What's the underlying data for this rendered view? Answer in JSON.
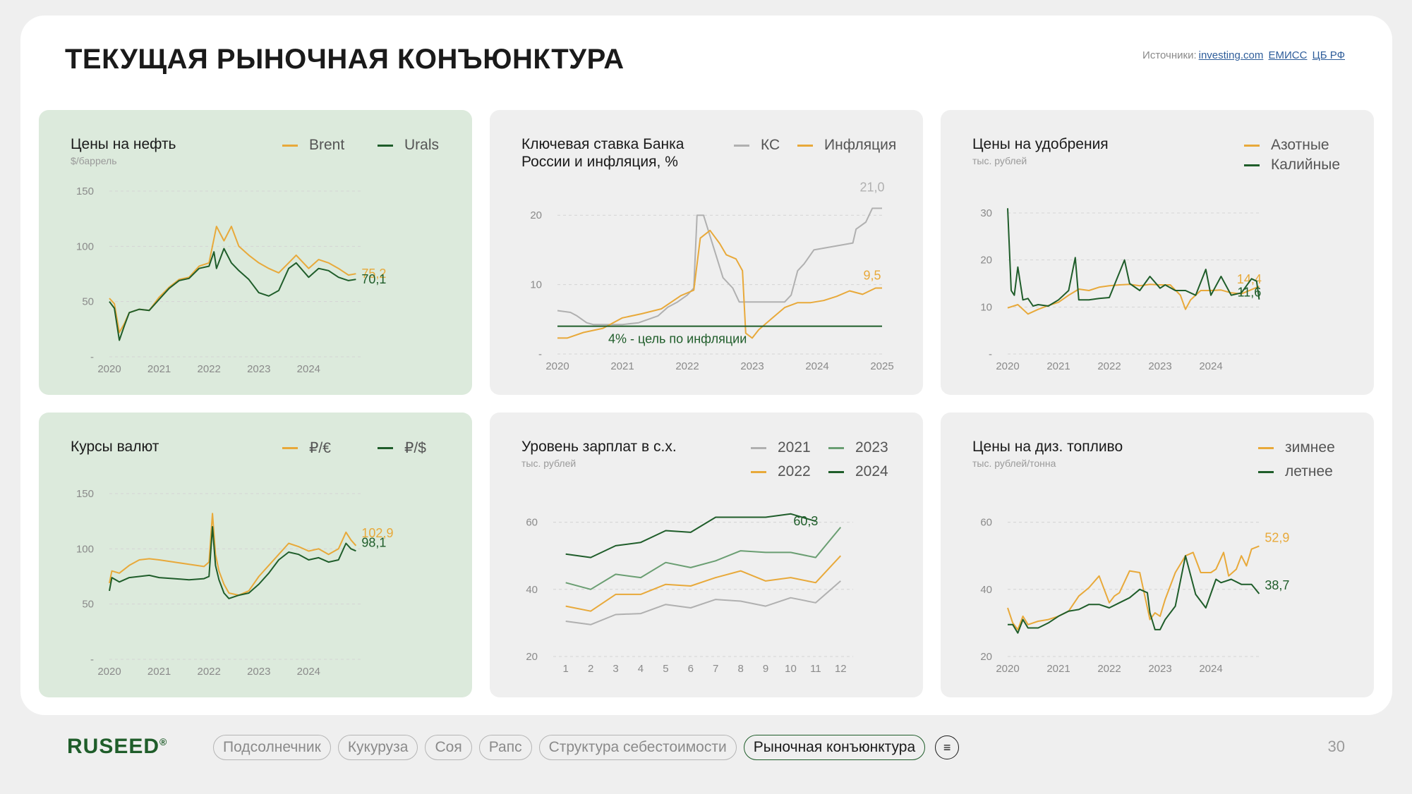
{
  "header": {
    "title": "ТЕКУЩАЯ РЫНОЧНАЯ КОНЪЮНКТУРА",
    "sources_label": "Источники:",
    "sources": [
      "investing.com",
      "ЕМИСС",
      "ЦБ РФ"
    ]
  },
  "colors": {
    "orange": "#e8a93a",
    "dark_green": "#1f5d2a",
    "mid_green": "#6a9e72",
    "gray": "#b0b0b0",
    "card_green": "#dceadc",
    "card_gray": "#efefef"
  },
  "chart_data": [
    {
      "id": "oil",
      "type": "line",
      "title": "Цены на нефть",
      "subtitle": "$/баррель",
      "ylim": [
        0,
        150
      ],
      "y_ticks": [
        0,
        50,
        100,
        150
      ],
      "y_tick_labels": [
        "-",
        "50",
        "100",
        "150"
      ],
      "xlim": [
        2020,
        2025.1
      ],
      "x_ticks": [
        2020,
        2021,
        2022,
        2023,
        2024
      ],
      "x_tick_labels": [
        "2020",
        "2021",
        "2022",
        "2023",
        "2024"
      ],
      "legend": "top-right",
      "series": [
        {
          "name": "Brent",
          "color": "#e8a93a",
          "x": [
            2020.0,
            2020.1,
            2020.2,
            2020.3,
            2020.4,
            2020.6,
            2020.8,
            2021.0,
            2021.2,
            2021.4,
            2021.6,
            2021.8,
            2022.0,
            2022.15,
            2022.3,
            2022.45,
            2022.6,
            2022.8,
            2023.0,
            2023.2,
            2023.4,
            2023.6,
            2023.75,
            2024.0,
            2024.2,
            2024.4,
            2024.6,
            2024.8,
            2024.95
          ],
          "y": [
            53,
            48,
            22,
            30,
            40,
            43,
            42,
            54,
            63,
            70,
            72,
            82,
            85,
            118,
            105,
            118,
            100,
            92,
            85,
            80,
            76,
            85,
            92,
            80,
            88,
            85,
            80,
            74,
            75.2
          ],
          "end_label": "75,2"
        },
        {
          "name": "Urals",
          "color": "#1f5d2a",
          "x": [
            2020.0,
            2020.1,
            2020.2,
            2020.3,
            2020.4,
            2020.6,
            2020.8,
            2021.0,
            2021.2,
            2021.4,
            2021.6,
            2021.8,
            2022.0,
            2022.1,
            2022.15,
            2022.3,
            2022.45,
            2022.6,
            2022.8,
            2023.0,
            2023.2,
            2023.4,
            2023.6,
            2023.75,
            2024.0,
            2024.2,
            2024.4,
            2024.6,
            2024.8,
            2024.95
          ],
          "y": [
            50,
            44,
            15,
            28,
            40,
            43,
            42,
            52,
            62,
            69,
            71,
            80,
            82,
            95,
            80,
            98,
            85,
            78,
            70,
            58,
            55,
            60,
            80,
            85,
            72,
            80,
            78,
            72,
            69,
            70.1
          ],
          "end_label": "70,1"
        }
      ]
    },
    {
      "id": "key-rate",
      "type": "line",
      "title": "Ключевая ставка Банка России и инфляция, %",
      "ylim": [
        0,
        25
      ],
      "y_ticks": [
        0,
        10,
        20
      ],
      "y_tick_labels": [
        "-",
        "10",
        "20"
      ],
      "xlim": [
        2020,
        2025
      ],
      "x_ticks": [
        2020,
        2021,
        2022,
        2023,
        2024,
        2025
      ],
      "x_tick_labels": [
        "2020",
        "2021",
        "2022",
        "2023",
        "2024",
        "2025"
      ],
      "legend": "top-right",
      "annotation": "4% - цель по инфляции",
      "series": [
        {
          "name": "КС",
          "color": "#b0b0b0",
          "x": [
            2020.0,
            2020.2,
            2020.3,
            2020.45,
            2020.55,
            2021.0,
            2021.25,
            2021.4,
            2021.55,
            2021.7,
            2021.85,
            2022.0,
            2022.1,
            2022.15,
            2022.25,
            2022.35,
            2022.45,
            2022.55,
            2022.7,
            2022.8,
            2023.5,
            2023.6,
            2023.7,
            2023.8,
            2023.95,
            2024.55,
            2024.6,
            2024.75,
            2024.85,
            2025.0
          ],
          "y": [
            6.25,
            6,
            5.5,
            4.5,
            4.25,
            4.25,
            4.5,
            5,
            5.5,
            6.75,
            7.5,
            8.5,
            9.5,
            20,
            20,
            17,
            14,
            11,
            9.5,
            7.5,
            7.5,
            8.5,
            12,
            13,
            15,
            16,
            18,
            19,
            21,
            21
          ],
          "end_label": "21,0"
        },
        {
          "name": "Инфляция",
          "color": "#e8a93a",
          "x": [
            2020.0,
            2020.15,
            2020.4,
            2020.7,
            2021.0,
            2021.3,
            2021.6,
            2021.9,
            2022.1,
            2022.2,
            2022.35,
            2022.5,
            2022.6,
            2022.75,
            2022.85,
            2022.9,
            2023.0,
            2023.1,
            2023.3,
            2023.5,
            2023.7,
            2023.9,
            2024.1,
            2024.3,
            2024.5,
            2024.7,
            2024.9,
            2025.0
          ],
          "y": [
            2.3,
            2.3,
            3.1,
            3.7,
            5.2,
            5.8,
            6.5,
            8.4,
            9.2,
            16.7,
            17.8,
            15.9,
            14.3,
            13.7,
            12,
            3,
            2.3,
            3.5,
            5.1,
            6.7,
            7.4,
            7.4,
            7.7,
            8.3,
            9.1,
            8.6,
            9.5,
            9.5
          ],
          "end_label": "9,5"
        },
        {
          "name": "Цель",
          "color": "#1f5d2a",
          "x": [
            2020.0,
            2025.0
          ],
          "y": [
            4,
            4
          ]
        }
      ]
    },
    {
      "id": "fertilizer",
      "type": "line",
      "title": "Цены на удобрения",
      "subtitle": "тыс. рублей",
      "ylim": [
        0,
        30
      ],
      "y_ticks": [
        0,
        10,
        20,
        30
      ],
      "y_tick_labels": [
        "-",
        "10",
        "20",
        "30"
      ],
      "xlim": [
        2020,
        2025
      ],
      "x_ticks": [
        2020,
        2021,
        2022,
        2023,
        2024
      ],
      "x_tick_labels": [
        "2020",
        "2021",
        "2022",
        "2023",
        "2024"
      ],
      "legend": "top-right",
      "series": [
        {
          "name": "Азотные",
          "color": "#e8a93a",
          "x": [
            2020.0,
            2020.2,
            2020.4,
            2020.6,
            2020.8,
            2021.0,
            2021.2,
            2021.4,
            2021.6,
            2021.8,
            2022.0,
            2022.2,
            2022.4,
            2022.6,
            2022.8,
            2023.0,
            2023.2,
            2023.4,
            2023.5,
            2023.6,
            2023.8,
            2024.0,
            2024.2,
            2024.4,
            2024.6,
            2024.8,
            2024.95
          ],
          "y": [
            9.8,
            10.5,
            8.5,
            9.5,
            10.3,
            11,
            12.5,
            13.8,
            13.5,
            14.2,
            14.5,
            14.7,
            14.8,
            14.5,
            14.8,
            14.7,
            14.7,
            12.5,
            9.5,
            11.5,
            13.5,
            13.5,
            13.6,
            13,
            12.8,
            13.7,
            14.4
          ],
          "end_label": "14,4"
        },
        {
          "name": "Калийные",
          "color": "#1f5d2a",
          "x": [
            2020.0,
            2020.07,
            2020.13,
            2020.2,
            2020.3,
            2020.4,
            2020.5,
            2020.6,
            2020.8,
            2021.0,
            2021.2,
            2021.33,
            2021.4,
            2021.6,
            2021.8,
            2022.0,
            2022.3,
            2022.4,
            2022.6,
            2022.8,
            2023.0,
            2023.1,
            2023.3,
            2023.5,
            2023.7,
            2023.9,
            2024.0,
            2024.2,
            2024.4,
            2024.6,
            2024.8,
            2024.9,
            2024.95
          ],
          "y": [
            31,
            13.5,
            12.5,
            18.5,
            11.5,
            11.8,
            10.2,
            10.5,
            10.2,
            11.5,
            13.5,
            20.5,
            11.5,
            11.5,
            11.8,
            12,
            20,
            15,
            13.5,
            16.5,
            14,
            14.7,
            13.5,
            13.5,
            12.5,
            18,
            12.5,
            16.5,
            12.5,
            13,
            16,
            15.5,
            11.6
          ],
          "end_label": "11,6"
        }
      ]
    },
    {
      "id": "currency",
      "type": "line",
      "title": "Курсы валют",
      "ylim": [
        0,
        150
      ],
      "y_ticks": [
        0,
        50,
        100,
        150
      ],
      "y_tick_labels": [
        "-",
        "50",
        "100",
        "150"
      ],
      "xlim": [
        2020,
        2025.1
      ],
      "x_ticks": [
        2020,
        2021,
        2022,
        2023,
        2024
      ],
      "x_tick_labels": [
        "2020",
        "2021",
        "2022",
        "2023",
        "2024"
      ],
      "legend": "top-right",
      "series": [
        {
          "name": "₽/€",
          "color": "#e8a93a",
          "x": [
            2020.0,
            2020.05,
            2020.2,
            2020.4,
            2020.6,
            2020.8,
            2021.0,
            2021.3,
            2021.6,
            2021.9,
            2022.0,
            2022.07,
            2022.13,
            2022.2,
            2022.3,
            2022.4,
            2022.6,
            2022.8,
            2023.0,
            2023.2,
            2023.4,
            2023.6,
            2023.8,
            2024.0,
            2024.2,
            2024.4,
            2024.6,
            2024.75,
            2024.85,
            2024.95
          ],
          "y": [
            69,
            80,
            78,
            85,
            90,
            91,
            90,
            88,
            86,
            84,
            88,
            132,
            95,
            80,
            68,
            60,
            58,
            62,
            75,
            85,
            95,
            105,
            102,
            98,
            100,
            95,
            100,
            115,
            108,
            102.9
          ],
          "end_label": "102,9"
        },
        {
          "name": "₽/$",
          "color": "#1f5d2a",
          "x": [
            2020.0,
            2020.05,
            2020.2,
            2020.4,
            2020.6,
            2020.8,
            2021.0,
            2021.3,
            2021.6,
            2021.9,
            2022.0,
            2022.07,
            2022.13,
            2022.2,
            2022.3,
            2022.4,
            2022.6,
            2022.8,
            2023.0,
            2023.2,
            2023.4,
            2023.6,
            2023.8,
            2024.0,
            2024.2,
            2024.4,
            2024.6,
            2024.75,
            2024.85,
            2024.95
          ],
          "y": [
            62,
            74,
            70,
            74,
            75,
            76,
            74,
            73,
            72,
            73,
            75,
            120,
            85,
            72,
            60,
            55,
            58,
            60,
            68,
            78,
            90,
            97,
            95,
            90,
            92,
            88,
            90,
            105,
            100,
            98.1
          ],
          "end_label": "98,1"
        }
      ]
    },
    {
      "id": "salary",
      "type": "line",
      "title": "Уровень зарплат в с.х.",
      "subtitle": "тыс. рублей",
      "ylim": [
        20,
        70
      ],
      "y_ticks": [
        20,
        40,
        60
      ],
      "y_tick_labels": [
        "20",
        "40",
        "60"
      ],
      "xlim": [
        0.5,
        12.5
      ],
      "x_ticks": [
        1,
        2,
        3,
        4,
        5,
        6,
        7,
        8,
        9,
        10,
        11,
        12
      ],
      "x_tick_labels": [
        "1",
        "2",
        "3",
        "4",
        "5",
        "6",
        "7",
        "8",
        "9",
        "10",
        "11",
        "12"
      ],
      "legend": "top-right",
      "series": [
        {
          "name": "2021",
          "color": "#b0b0b0",
          "x": [
            1,
            2,
            3,
            4,
            5,
            6,
            7,
            8,
            9,
            10,
            11,
            12
          ],
          "y": [
            30.5,
            29.5,
            32.5,
            32.8,
            35.5,
            34.5,
            37,
            36.5,
            35,
            37.5,
            36,
            42.5
          ]
        },
        {
          "name": "2022",
          "color": "#e8a93a",
          "x": [
            1,
            2,
            3,
            4,
            5,
            6,
            7,
            8,
            9,
            10,
            11,
            12
          ],
          "y": [
            35,
            33.5,
            38.5,
            38.5,
            41.5,
            41,
            43.5,
            45.5,
            42.5,
            43.5,
            42,
            50
          ]
        },
        {
          "name": "2023",
          "color": "#6a9e72",
          "x": [
            1,
            2,
            3,
            4,
            5,
            6,
            7,
            8,
            9,
            10,
            11,
            12
          ],
          "y": [
            42,
            40,
            44.5,
            43.5,
            48,
            46.5,
            48.5,
            51.5,
            51,
            51,
            49.5,
            58.5
          ]
        },
        {
          "name": "2024",
          "color": "#1f5d2a",
          "x": [
            1,
            2,
            3,
            4,
            5,
            6,
            7,
            8,
            9,
            10,
            11
          ],
          "y": [
            50.5,
            49.5,
            53,
            54,
            57.5,
            57,
            61.5,
            61.5,
            61.5,
            62.5,
            60.3
          ],
          "end_label": "60,3"
        }
      ]
    },
    {
      "id": "diesel",
      "type": "line",
      "title": "Цены на диз. топливо",
      "subtitle": "тыс. рублей/тонна",
      "ylim": [
        20,
        70
      ],
      "y_ticks": [
        20,
        40,
        60
      ],
      "y_tick_labels": [
        "20",
        "40",
        "60"
      ],
      "xlim": [
        2020,
        2025
      ],
      "x_ticks": [
        2020,
        2021,
        2022,
        2023,
        2024
      ],
      "x_tick_labels": [
        "2020",
        "2021",
        "2022",
        "2023",
        "2024"
      ],
      "legend": "top-right",
      "series": [
        {
          "name": "зимнее",
          "color": "#e8a93a",
          "x": [
            2020.0,
            2020.1,
            2020.2,
            2020.3,
            2020.4,
            2020.6,
            2020.8,
            2021.0,
            2021.2,
            2021.4,
            2021.6,
            2021.8,
            2022.0,
            2022.1,
            2022.2,
            2022.4,
            2022.6,
            2022.8,
            2022.9,
            2023.0,
            2023.1,
            2023.3,
            2023.5,
            2023.65,
            2023.8,
            2024.0,
            2024.1,
            2024.25,
            2024.35,
            2024.5,
            2024.6,
            2024.7,
            2024.8,
            2024.95
          ],
          "y": [
            34.5,
            30,
            28,
            32,
            29.5,
            30.5,
            31,
            32,
            33.5,
            38,
            40.5,
            44,
            36,
            38,
            39,
            45.5,
            45,
            31,
            33,
            32,
            37,
            45,
            50,
            51,
            45,
            45,
            46,
            51,
            44,
            46,
            50,
            47,
            52,
            52.9
          ],
          "end_label": "52,9"
        },
        {
          "name": "летнее",
          "color": "#1f5d2a",
          "x": [
            2020.0,
            2020.1,
            2020.2,
            2020.3,
            2020.4,
            2020.6,
            2020.8,
            2021.0,
            2021.2,
            2021.4,
            2021.6,
            2021.8,
            2022.0,
            2022.2,
            2022.4,
            2022.6,
            2022.75,
            2022.8,
            2022.9,
            2023.0,
            2023.1,
            2023.3,
            2023.5,
            2023.7,
            2023.9,
            2024.1,
            2024.2,
            2024.4,
            2024.6,
            2024.8,
            2024.95
          ],
          "y": [
            29.5,
            29.5,
            27,
            31,
            28.5,
            28.5,
            30,
            32,
            33.5,
            34,
            35.5,
            35.5,
            34.5,
            36,
            37.5,
            40,
            39,
            33,
            28,
            28,
            31,
            35,
            50,
            38.5,
            34.5,
            43,
            42,
            43,
            41.5,
            41.5,
            38.7
          ],
          "end_label": "38,7"
        }
      ]
    }
  ],
  "footer": {
    "logo": "RUSEED",
    "logo_mark": "®",
    "nav": [
      "Подсолнечник",
      "Кукуруза",
      "Соя",
      "Рапс",
      "Структура себестоимости",
      "Рыночная конъюнктура"
    ],
    "active_nav": "Рыночная конъюнктура",
    "menu_icon": "menu-icon",
    "page_number": "30"
  }
}
